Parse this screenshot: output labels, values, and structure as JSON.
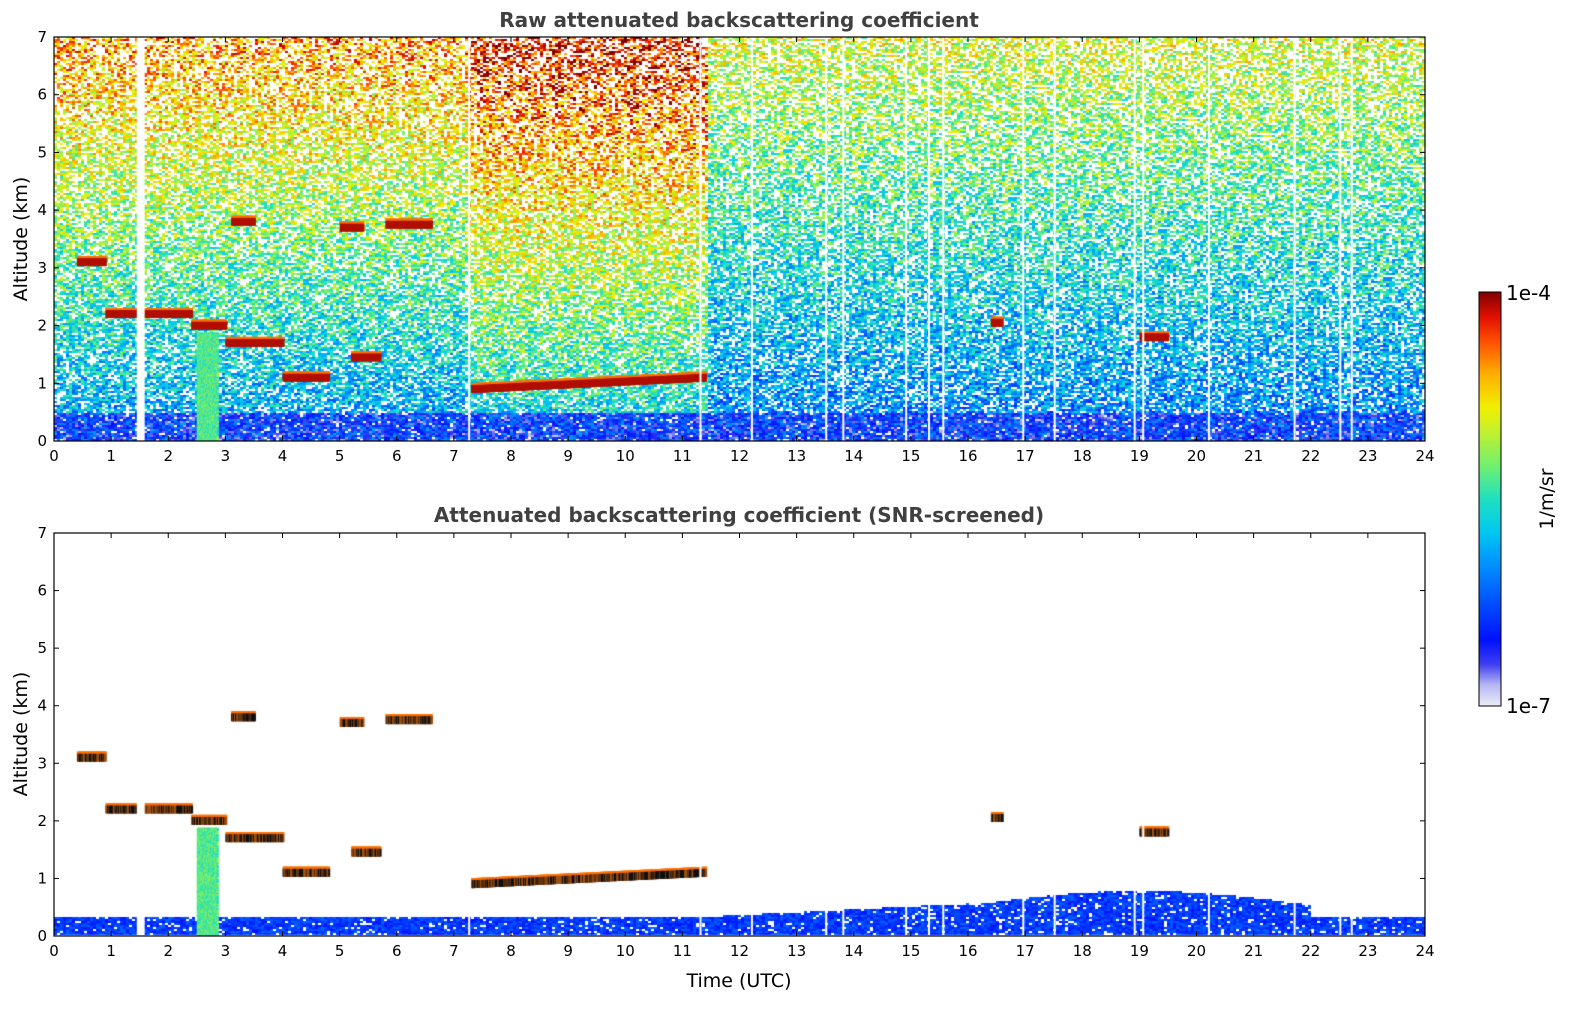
{
  "chart_data": [
    {
      "type": "heatmap",
      "title": "Raw attenuated backscattering coefficient",
      "xlabel": "",
      "ylabel": "Altitude (km)",
      "xlim": [
        0,
        24
      ],
      "ylim": [
        0,
        7
      ],
      "xticks": [
        "0",
        "1",
        "2",
        "3",
        "4",
        "5",
        "6",
        "7",
        "8",
        "9",
        "10",
        "11",
        "12",
        "13",
        "14",
        "15",
        "16",
        "17",
        "18",
        "19",
        "20",
        "21",
        "22",
        "23",
        "24"
      ],
      "yticks": [
        "0",
        "1",
        "2",
        "3",
        "4",
        "5",
        "6",
        "7"
      ],
      "cloud_layers": [
        {
          "t_start": 7.3,
          "t_end": 11.4,
          "alt_start_km": 0.9,
          "alt_end_km": 1.1
        },
        {
          "t_start": 5.0,
          "t_end": 5.4,
          "alt_km": 3.7
        },
        {
          "t_start": 5.8,
          "t_end": 6.6,
          "alt_km": 3.75
        },
        {
          "t_start": 3.1,
          "t_end": 3.5,
          "alt_km": 3.8
        },
        {
          "t_start": 0.4,
          "t_end": 0.9,
          "alt_km": 3.1
        },
        {
          "t_start": 0.9,
          "t_end": 2.4,
          "alt_km": 2.2
        },
        {
          "t_start": 2.4,
          "t_end": 3.0,
          "alt_km": 2.0
        },
        {
          "t_start": 3.0,
          "t_end": 4.0,
          "alt_km": 1.7
        },
        {
          "t_start": 4.0,
          "t_end": 4.8,
          "alt_km": 1.1
        },
        {
          "t_start": 5.2,
          "t_end": 5.7,
          "alt_km": 1.45
        },
        {
          "t_start": 19.0,
          "t_end": 19.5,
          "alt_km": 1.8
        },
        {
          "t_start": 16.4,
          "t_end": 16.6,
          "alt_km": 2.05
        }
      ],
      "plume": {
        "t_start": 2.5,
        "t_end": 2.85,
        "alt_top_km": 1.9
      }
    },
    {
      "type": "heatmap",
      "title": "Attenuated backscattering coefficient (SNR-screened)",
      "xlabel": "Time (UTC)",
      "ylabel": "Altitude (km)",
      "xlim": [
        0,
        24
      ],
      "ylim": [
        0,
        7
      ],
      "xticks": [
        "0",
        "1",
        "2",
        "3",
        "4",
        "5",
        "6",
        "7",
        "8",
        "9",
        "10",
        "11",
        "12",
        "13",
        "14",
        "15",
        "16",
        "17",
        "18",
        "19",
        "20",
        "21",
        "22",
        "23",
        "24"
      ],
      "yticks": [
        "0",
        "1",
        "2",
        "3",
        "4",
        "5",
        "6",
        "7"
      ]
    }
  ],
  "colorbar": {
    "label": "1/m/sr",
    "max_label": "1e-4",
    "min_label": "1e-7",
    "scale": "log",
    "colormap": [
      "#e8e8f8",
      "#c8c8f4",
      "#9090f0",
      "#3030f0",
      "#0010ff",
      "#0050ff",
      "#0090ff",
      "#00c8f0",
      "#20e0c0",
      "#60f080",
      "#b0f040",
      "#f0f000",
      "#ffb000",
      "#ff6000",
      "#f01000",
      "#900000"
    ]
  }
}
